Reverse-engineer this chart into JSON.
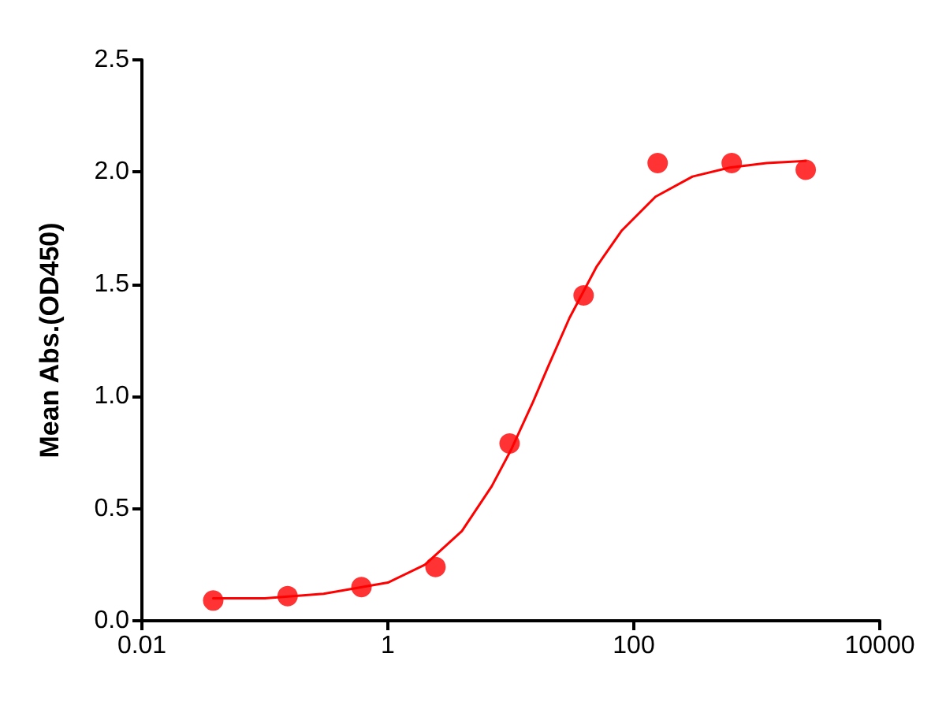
{
  "chart_data": {
    "type": "scatter",
    "ylabel": "Mean Abs.(OD450)",
    "log": "x",
    "xlim": [
      0.01,
      10000
    ],
    "xticks": [
      0.01,
      1,
      100,
      10000
    ],
    "ylim": [
      0,
      2.5
    ],
    "yticks": [
      {
        "value": 0,
        "label": "0.0"
      },
      0.5,
      {
        "value": 1,
        "label": "1.0"
      },
      1.5,
      {
        "value": 2,
        "label": "2.0"
      },
      2.5
    ],
    "grid": false,
    "series": [
      {
        "color": "#ff0000",
        "marker": "circle",
        "x": [
          0.038,
          0.153,
          0.61,
          2.44,
          9.77,
          39.06,
          156.25,
          625,
          2500
        ],
        "values": [
          0.09,
          0.11,
          0.15,
          0.24,
          0.79,
          1.45,
          2.04,
          2.04,
          2.01
        ]
      },
      {
        "type": "line",
        "color": "#ff0000",
        "marker": "none",
        "line_style": "solid",
        "x": [
          0.038,
          0.1,
          0.3,
          1,
          2,
          4,
          7,
          10,
          15,
          20,
          30,
          50,
          80,
          150,
          300,
          600,
          1200,
          2500
        ],
        "values": [
          0.1,
          0.1,
          0.12,
          0.17,
          0.25,
          0.4,
          0.6,
          0.76,
          0.97,
          1.13,
          1.35,
          1.58,
          1.74,
          1.89,
          1.98,
          2.02,
          2.04,
          2.05
        ]
      }
    ]
  }
}
